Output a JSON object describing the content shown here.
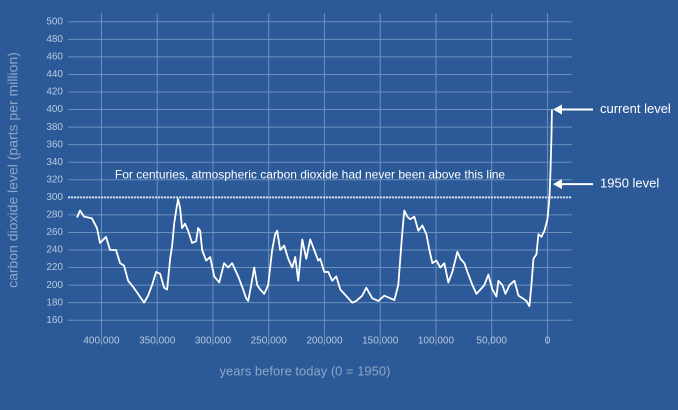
{
  "chart_data": {
    "type": "line",
    "y_label": "carbon dioxide level (parts per million)",
    "x_label": "years before today (0 = 1950)",
    "xlim": [
      430000,
      -22000
    ],
    "xticks": [
      {
        "value": 400000,
        "label": "400,000"
      },
      {
        "value": 350000,
        "label": "350,000"
      },
      {
        "value": 300000,
        "label": "300,000"
      },
      {
        "value": 250000,
        "label": "250,000"
      },
      {
        "value": 200000,
        "label": "200,000"
      },
      {
        "value": 150000,
        "label": "150,000"
      },
      {
        "value": 100000,
        "label": "100,000"
      },
      {
        "value": 50000,
        "label": "50,000"
      },
      0
    ],
    "ylim": [
      150,
      510
    ],
    "yticks": [
      160,
      180,
      200,
      220,
      240,
      260,
      280,
      300,
      320,
      340,
      360,
      380,
      400,
      420,
      440,
      460,
      480,
      500
    ],
    "grid": true,
    "reference_line": {
      "value": 300,
      "label": "For centuries, atmospheric carbon dioxide had never been above this line"
    },
    "annotations": [
      {
        "text": "current level",
        "y": 400
      },
      {
        "text": "1950 level",
        "y": 315
      }
    ],
    "x": [
      421900,
      419200,
      415600,
      408500,
      404000,
      401300,
      395900,
      392300,
      386900,
      383300,
      379700,
      376100,
      371600,
      367200,
      361800,
      358200,
      354600,
      351000,
      347400,
      343800,
      341100,
      338400,
      336600,
      334800,
      333000,
      331300,
      329500,
      327700,
      325000,
      322300,
      318700,
      315100,
      313300,
      311500,
      309700,
      306100,
      302500,
      298900,
      294400,
      290000,
      286400,
      282800,
      277400,
      273800,
      270200,
      268400,
      265700,
      263000,
      260300,
      257600,
      254000,
      250500,
      246900,
      244200,
      242400,
      239700,
      236100,
      232500,
      228900,
      226200,
      223500,
      219900,
      216300,
      212800,
      209200,
      205600,
      203800,
      200200,
      196600,
      193000,
      189400,
      185800,
      182200,
      178600,
      175100,
      171500,
      166100,
      162500,
      157100,
      151700,
      146300,
      140900,
      137300,
      133800,
      132000,
      130200,
      128400,
      125700,
      123000,
      119400,
      115800,
      112200,
      108600,
      105900,
      103200,
      99600,
      96100,
      92500,
      88900,
      85300,
      80800,
      78100,
      74500,
      71800,
      67300,
      63700,
      60100,
      56600,
      53000,
      49400,
      45800,
      44000,
      40400,
      37700,
      34100,
      29600,
      26000,
      22400,
      18900,
      16200,
      14400,
      12600,
      9900,
      8100,
      5400,
      2700,
      0,
      -1800,
      -2700,
      -3600,
      -4000
    ],
    "series": [
      {
        "color": "#ffffff",
        "values": [
          277,
          285,
          278,
          276,
          265,
          248,
          255,
          240,
          240,
          225,
          222,
          205,
          198,
          190,
          180,
          188,
          200,
          215,
          213,
          197,
          195,
          230,
          245,
          270,
          285,
          298,
          288,
          265,
          270,
          262,
          248,
          250,
          265,
          262,
          240,
          228,
          232,
          210,
          203,
          225,
          220,
          225,
          210,
          198,
          185,
          182,
          200,
          220,
          200,
          195,
          190,
          200,
          240,
          258,
          262,
          240,
          245,
          230,
          220,
          232,
          205,
          252,
          230,
          252,
          240,
          228,
          230,
          215,
          215,
          205,
          210,
          195,
          190,
          185,
          180,
          182,
          188,
          197,
          185,
          182,
          188,
          185,
          183,
          200,
          230,
          260,
          285,
          278,
          275,
          278,
          262,
          268,
          258,
          240,
          225,
          228,
          220,
          225,
          203,
          215,
          238,
          230,
          225,
          215,
          200,
          190,
          195,
          200,
          212,
          195,
          187,
          205,
          200,
          190,
          200,
          205,
          188,
          185,
          182,
          176,
          200,
          230,
          235,
          258,
          255,
          262,
          275,
          300,
          330,
          370,
          400
        ]
      }
    ]
  }
}
